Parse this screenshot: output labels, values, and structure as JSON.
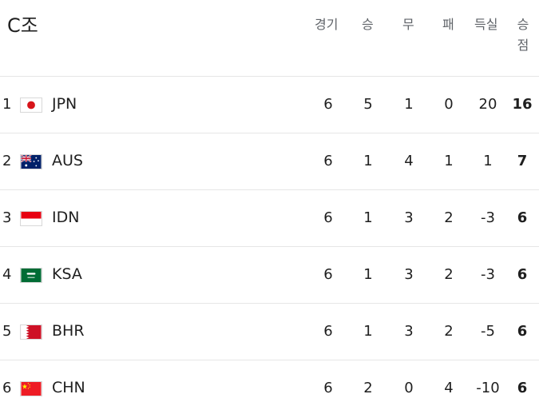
{
  "group_title": "C조",
  "headers": {
    "played": "경기",
    "won": "승",
    "drawn": "무",
    "lost": "패",
    "goal_diff": "득실",
    "points": "승점"
  },
  "rows": [
    {
      "rank": "1",
      "team": "JPN",
      "flag_icon": "japan-flag-icon",
      "played": "6",
      "won": "5",
      "drawn": "1",
      "lost": "0",
      "goal_diff": "20",
      "points": "16"
    },
    {
      "rank": "2",
      "team": "AUS",
      "flag_icon": "australia-flag-icon",
      "played": "6",
      "won": "1",
      "drawn": "4",
      "lost": "1",
      "goal_diff": "1",
      "points": "7"
    },
    {
      "rank": "3",
      "team": "IDN",
      "flag_icon": "indonesia-flag-icon",
      "played": "6",
      "won": "1",
      "drawn": "3",
      "lost": "2",
      "goal_diff": "-3",
      "points": "6"
    },
    {
      "rank": "4",
      "team": "KSA",
      "flag_icon": "saudi-arabia-flag-icon",
      "played": "6",
      "won": "1",
      "drawn": "3",
      "lost": "2",
      "goal_diff": "-3",
      "points": "6"
    },
    {
      "rank": "5",
      "team": "BHR",
      "flag_icon": "bahrain-flag-icon",
      "played": "6",
      "won": "1",
      "drawn": "3",
      "lost": "2",
      "goal_diff": "-5",
      "points": "6"
    },
    {
      "rank": "6",
      "team": "CHN",
      "flag_icon": "china-flag-icon",
      "played": "6",
      "won": "2",
      "drawn": "0",
      "lost": "4",
      "goal_diff": "-10",
      "points": "6"
    }
  ]
}
